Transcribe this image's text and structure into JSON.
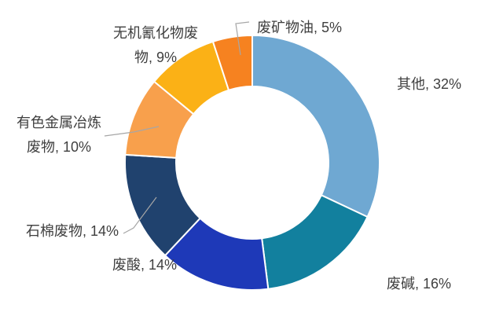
{
  "chart_data": {
    "type": "pie",
    "subtype": "donut",
    "title": "",
    "start_angle_deg": 0,
    "direction": "clockwise",
    "legend": "none",
    "hole_ratio": 0.6,
    "categories": [
      "其他",
      "废碱",
      "废酸",
      "石棉废物",
      "有色金属冶炼废物",
      "无机氰化物废物",
      "废矿物油"
    ],
    "values": [
      32,
      16,
      14,
      14,
      10,
      9,
      5
    ],
    "unit": "%",
    "colors": [
      "#6FA8D2",
      "#12809E",
      "#1E39B8",
      "#20426E",
      "#F8A04C",
      "#FBB116",
      "#F68220"
    ],
    "labels": [
      {
        "category": "其他",
        "value": 32,
        "lines": [
          "其他, 32%"
        ]
      },
      {
        "category": "废碱",
        "value": 16,
        "lines": [
          "废碱, 16%"
        ]
      },
      {
        "category": "废酸",
        "value": 14,
        "lines": [
          "废酸, 14%"
        ]
      },
      {
        "category": "石棉废物",
        "value": 14,
        "lines": [
          "石棉废物, 14%"
        ]
      },
      {
        "category": "有色金属冶炼废物",
        "value": 10,
        "lines": [
          "有色金属冶炼",
          "废物, 10%"
        ]
      },
      {
        "category": "无机氰化物废物",
        "value": 9,
        "lines": [
          "无机氰化物废",
          "物, 9%"
        ]
      },
      {
        "category": "废矿物油",
        "value": 5,
        "lines": [
          "废矿物油, 5%"
        ]
      }
    ],
    "label_color": "#3F3F3F",
    "leader_line_color": "#A6A6A6",
    "segment_separator_color": "#FFFFFF",
    "background": "#FFFFFF"
  }
}
